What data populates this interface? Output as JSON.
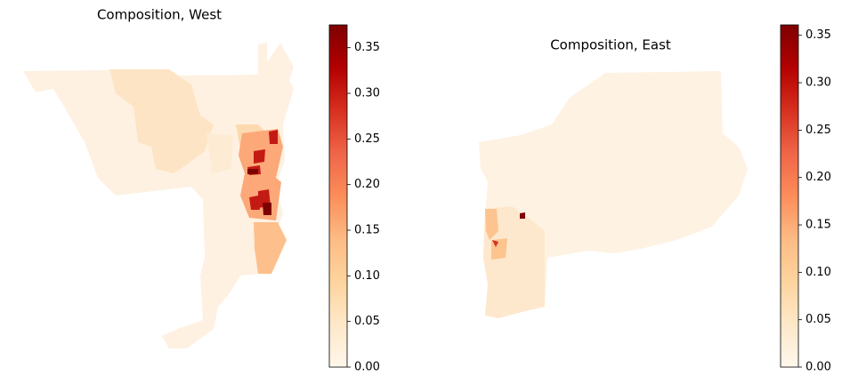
{
  "maps": [
    {
      "title": "Composition, West",
      "colorbar": {
        "lim": [
          0,
          0.375
        ],
        "ticks": [
          {
            "value": 0,
            "label": "0.00"
          },
          {
            "value": 0.05,
            "label": "0.05"
          },
          {
            "value": 0.1,
            "label": "0.10"
          },
          {
            "value": 0.15,
            "label": "0.15"
          },
          {
            "value": 0.2,
            "label": "0.20"
          },
          {
            "value": 0.25,
            "label": "0.25"
          },
          {
            "value": 0.3,
            "label": "0.30"
          },
          {
            "value": 0.35,
            "label": "0.35"
          }
        ]
      }
    },
    {
      "title": "Composition, East",
      "colorbar": {
        "lim": [
          0,
          0.361
        ],
        "ticks": [
          {
            "value": 0,
            "label": "0.00"
          },
          {
            "value": 0.05,
            "label": "0.05"
          },
          {
            "value": 0.1,
            "label": "0.10"
          },
          {
            "value": 0.15,
            "label": "0.15"
          },
          {
            "value": 0.2,
            "label": "0.20"
          },
          {
            "value": 0.25,
            "label": "0.25"
          },
          {
            "value": 0.3,
            "label": "0.30"
          },
          {
            "value": 0.35,
            "label": "0.35"
          }
        ]
      }
    }
  ]
}
